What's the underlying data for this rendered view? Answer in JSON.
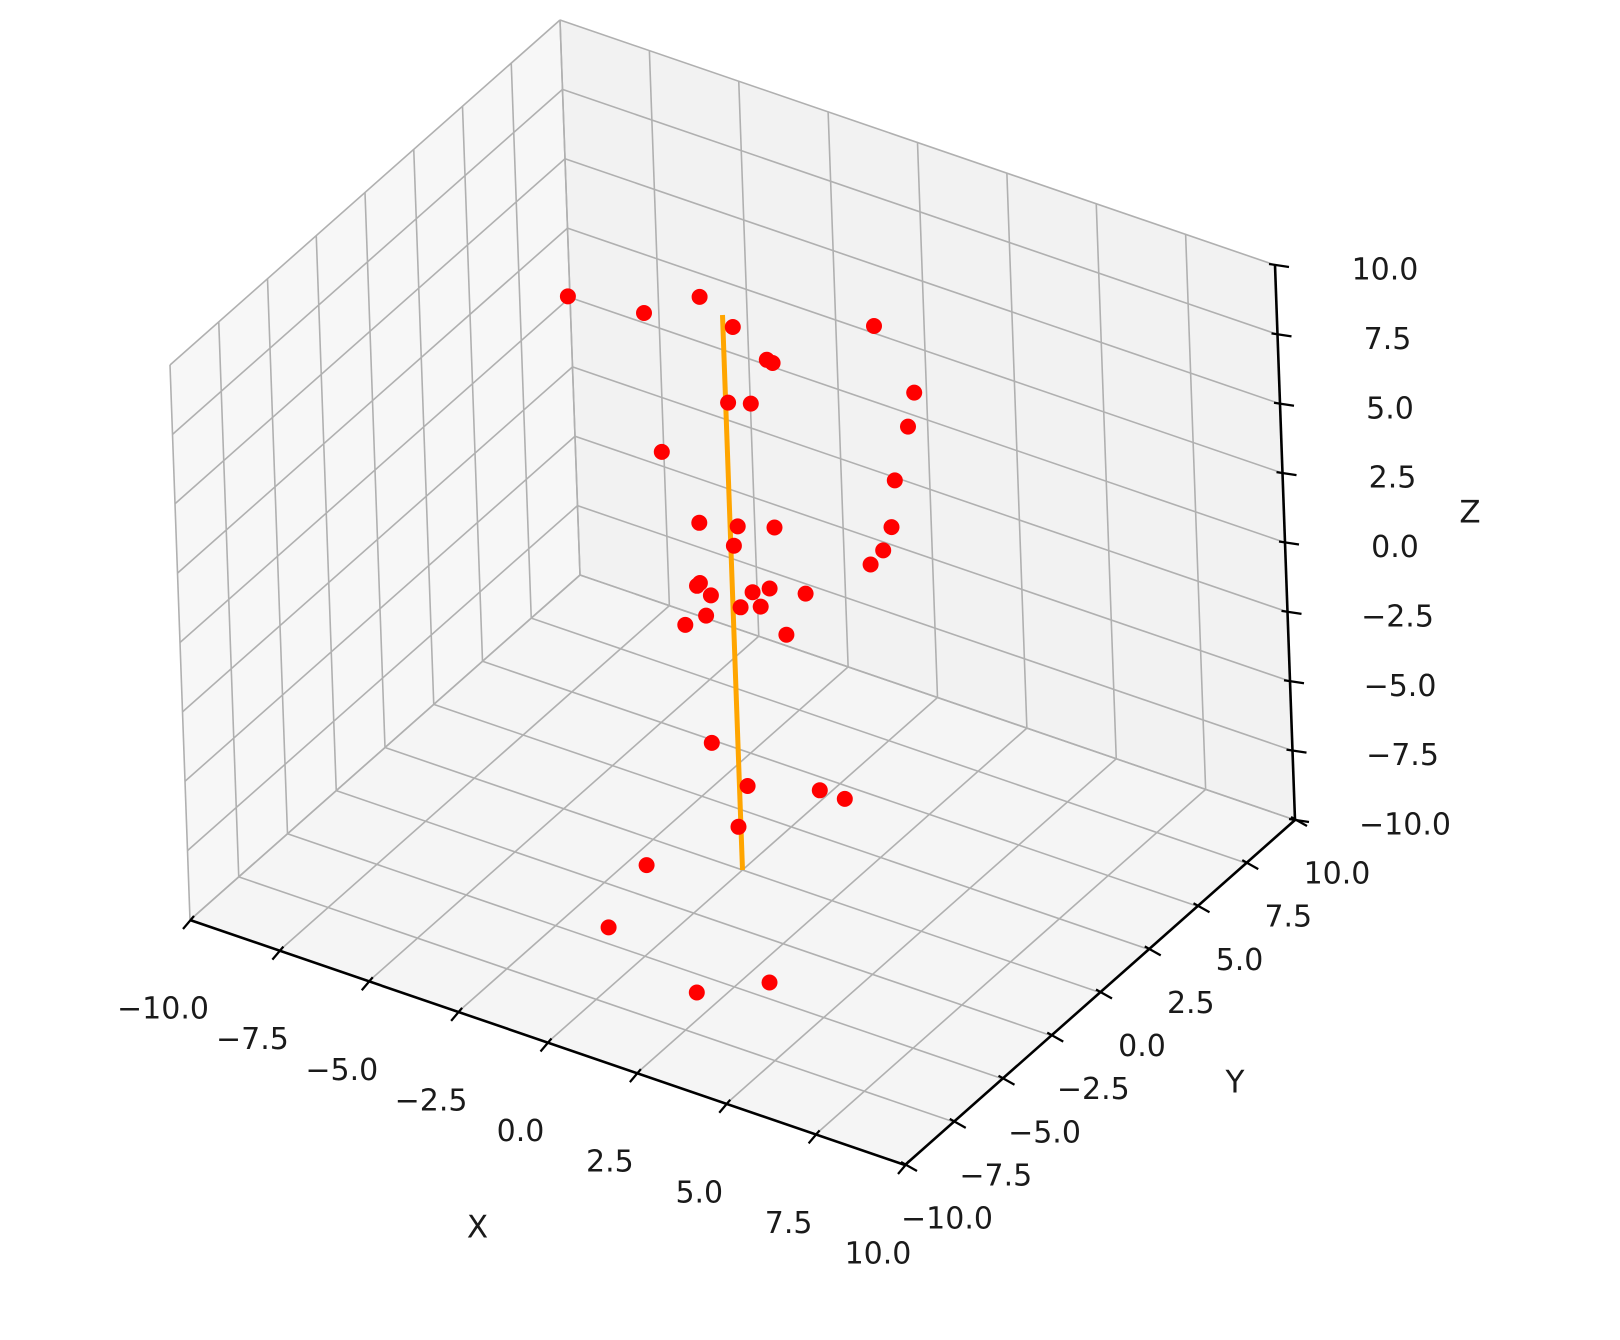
{
  "chart_data": {
    "type": "scatter",
    "projection": "3d",
    "title": "",
    "xlabel": "X",
    "ylabel": "Y",
    "zlabel": "Z",
    "xlim": [
      -10,
      10
    ],
    "ylim": [
      -10,
      10
    ],
    "zlim": [
      -10,
      10
    ],
    "grid": true,
    "x_ticks": [
      "−10.0",
      "−7.5",
      "−5.0",
      "−2.5",
      "0.0",
      "2.5",
      "5.0",
      "7.5",
      "10.0"
    ],
    "y_ticks": [
      "−10.0",
      "−7.5",
      "−5.0",
      "−2.5",
      "0.0",
      "2.5",
      "5.0",
      "7.5",
      "10.0"
    ],
    "z_ticks": [
      "−10.0",
      "−7.5",
      "−5.0",
      "−2.5",
      "0.0",
      "2.5",
      "5.0",
      "7.5",
      "10.0"
    ],
    "colors": {
      "points": "#ff0000",
      "line": "#ffa500",
      "pane_left": "#f7f7f7",
      "pane_back": "#f2f2f2",
      "pane_floor": "#f5f5f5",
      "grid": "#b0b0b0"
    },
    "series": [
      {
        "kind": "scatter",
        "points": [
          [
            -1.2,
            1.0,
            9.5
          ],
          [
            0.8,
            1.0,
            8.0
          ],
          [
            -4.5,
            4.0,
            5.6
          ],
          [
            -2.0,
            4.0,
            6.2
          ],
          [
            -5.5,
            2.0,
            7.0
          ],
          [
            2.5,
            5.0,
            5.2
          ],
          [
            -0.5,
            3.0,
            6.3
          ],
          [
            4.0,
            2.0,
            6.5
          ],
          [
            2.0,
            4.0,
            8.0
          ],
          [
            -1.0,
            3.0,
            4.5
          ],
          [
            -0.5,
            1.0,
            6.0
          ],
          [
            3.0,
            3.0,
            3.5
          ],
          [
            4.0,
            1.0,
            3.5
          ],
          [
            -0.3,
            -1.0,
            3.0
          ],
          [
            0.1,
            0.2,
            2.3
          ],
          [
            -3.0,
            2.0,
            2.5
          ],
          [
            0.2,
            -0.2,
            1.9
          ],
          [
            0.8,
            0.8,
            2.2
          ],
          [
            2.8,
            2.0,
            1.0
          ],
          [
            2.6,
            3.0,
            0.8
          ],
          [
            0.4,
            0.3,
            0.0
          ],
          [
            1.5,
            1.0,
            0.0
          ],
          [
            0.5,
            -0.5,
            0.0
          ],
          [
            -1.0,
            0.0,
            -0.2
          ],
          [
            -0.5,
            -0.2,
            -0.2
          ],
          [
            -0.2,
            -1.0,
            -0.3
          ],
          [
            -1.2,
            0.5,
            -0.5
          ],
          [
            0.5,
            0.5,
            -0.6
          ],
          [
            0.2,
            1.5,
            -0.7
          ],
          [
            -0.8,
            -1.0,
            -0.9
          ],
          [
            1.2,
            0.5,
            -1.3
          ],
          [
            0.4,
            -2.0,
            -4.0
          ],
          [
            0.8,
            -1.0,
            -6.0
          ],
          [
            1.7,
            1.0,
            -7.0
          ],
          [
            2.4,
            1.0,
            -7.0
          ],
          [
            0.5,
            -1.0,
            -7.6
          ],
          [
            -1.0,
            -3.0,
            -8.4
          ],
          [
            -1.0,
            -5.0,
            -9.4
          ],
          [
            2.0,
            -6.0,
            -9.8
          ],
          [
            3.5,
            -5.0,
            -9.4
          ]
        ]
      },
      {
        "kind": "line",
        "points": [
          [
            0,
            0,
            -10
          ],
          [
            0,
            0,
            10
          ]
        ]
      }
    ]
  }
}
